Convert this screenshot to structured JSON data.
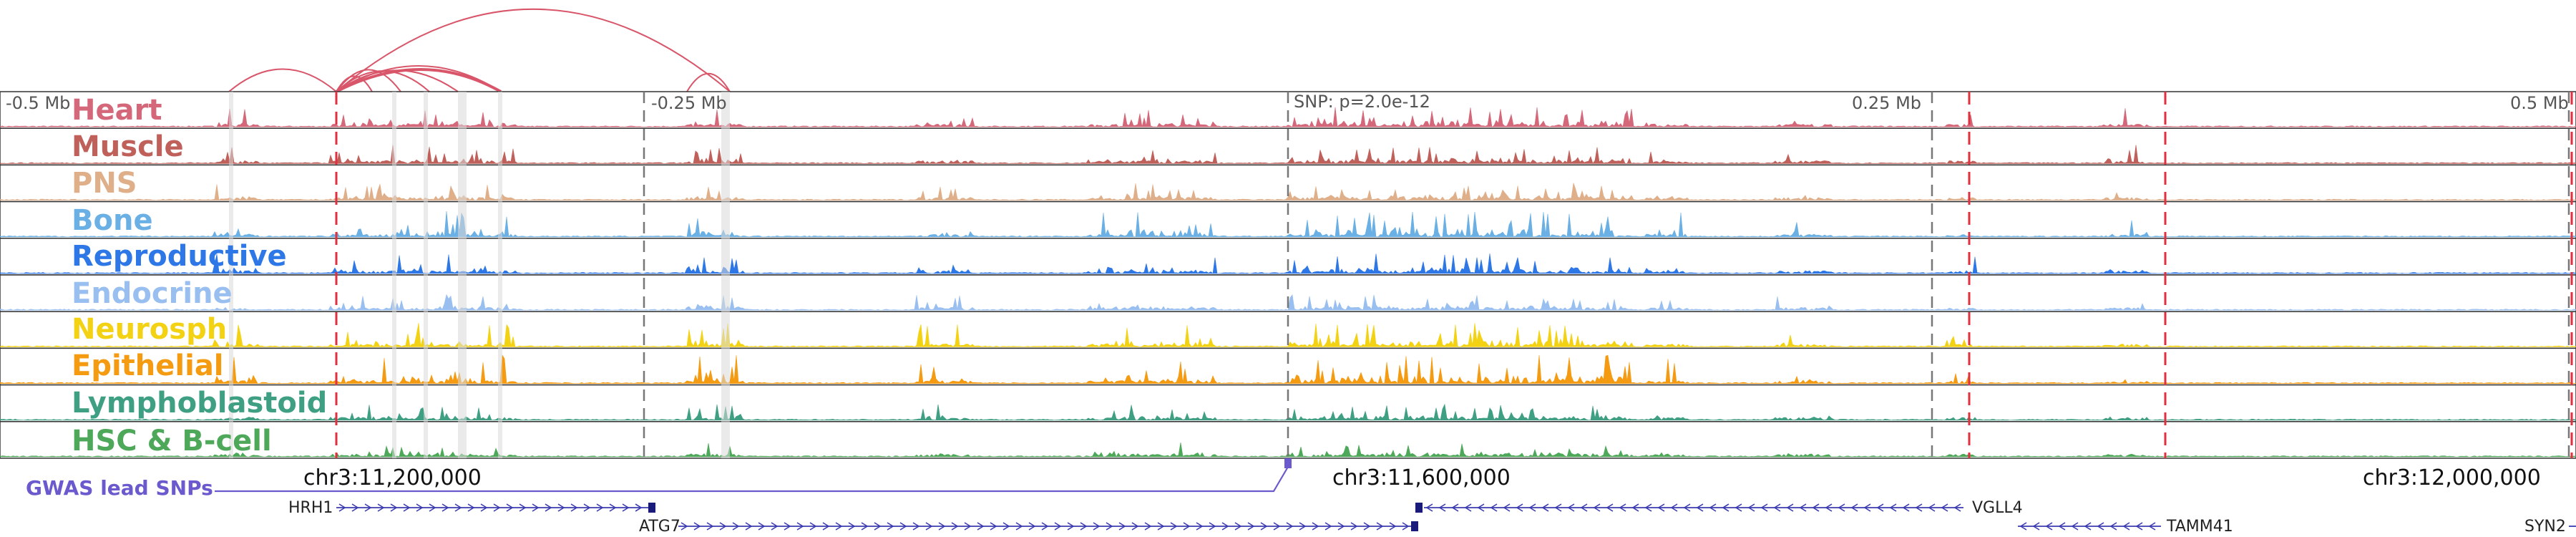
{
  "scale": {
    "left": "-0.5 Mb",
    "left_mid": "-0.25 Mb",
    "center": "SNP: p=2.0e-12",
    "right_mid": "0.25 Mb",
    "right": "0.5 Mb"
  },
  "tracks": [
    {
      "name": "Heart",
      "color": "#d4687a"
    },
    {
      "name": "Muscle",
      "color": "#c0605a"
    },
    {
      "name": "PNS",
      "color": "#dfaf8a"
    },
    {
      "name": "Bone",
      "color": "#6ab0e4"
    },
    {
      "name": "Reproductive",
      "color": "#2e77e6"
    },
    {
      "name": "Endocrine",
      "color": "#98bff0"
    },
    {
      "name": "Neurosph",
      "color": "#f3d214"
    },
    {
      "name": "Epithelial",
      "color": "#f49b12"
    },
    {
      "name": "Lymphoblastoid",
      "color": "#3f9f83"
    },
    {
      "name": "HSC & B-cell",
      "color": "#4ea859"
    }
  ],
  "coordinates": {
    "c1": "chr3:11,200,000",
    "c2": "chr3:11,600,000",
    "c3": "chr3:12,000,000"
  },
  "gwas": {
    "label": "GWAS lead SNPs",
    "color": "#6a5acd"
  },
  "genes": {
    "hrh1": "HRH1",
    "atg7": "ATG7",
    "vgll4": "VGLL4",
    "tamm41": "TAMM41",
    "syn2": "SYN2"
  },
  "colors": {
    "loop_arc": "#d9566a",
    "enhancer_marker": "#e03040",
    "gene_strand": "#3b3bb0"
  }
}
